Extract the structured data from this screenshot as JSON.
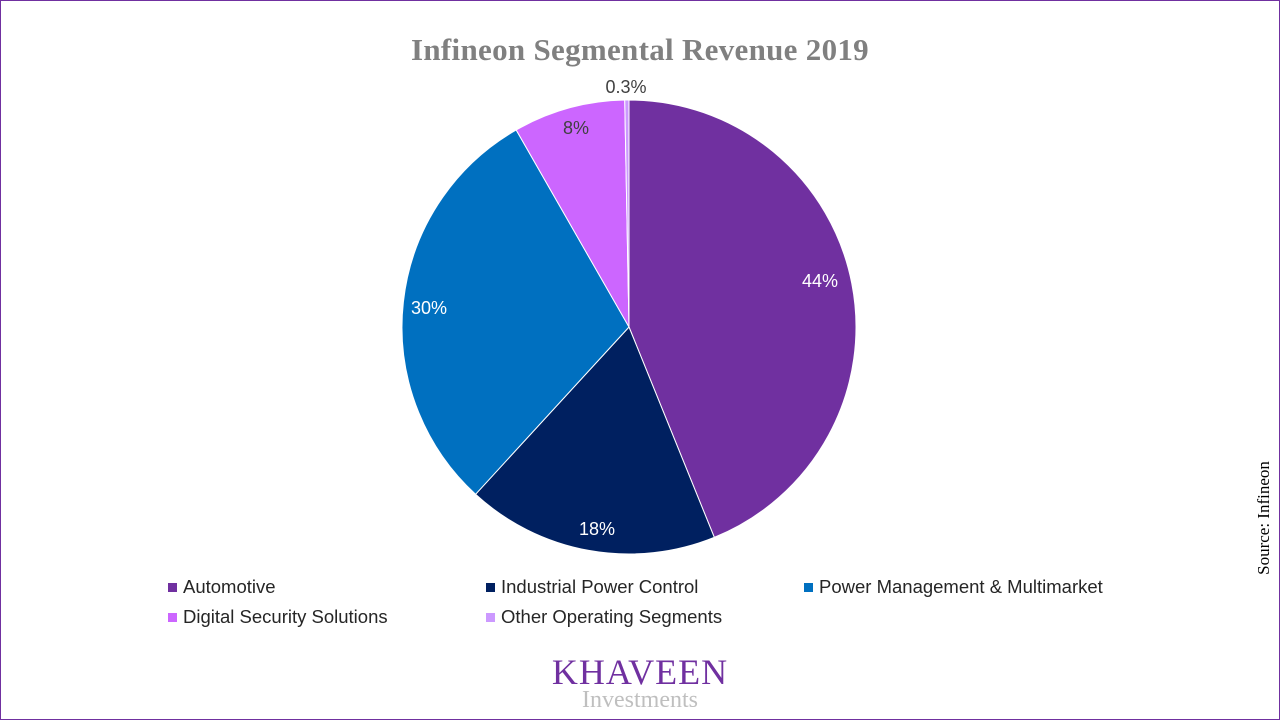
{
  "chart_data": {
    "type": "pie",
    "title": "Infineon Segmental Revenue 2019",
    "slices": [
      {
        "name": "Automotive",
        "value": 44,
        "label": "44%",
        "color": "#7030a0",
        "label_color": "#ffffff"
      },
      {
        "name": "Industrial Power Control",
        "value": 18,
        "label": "18%",
        "color": "#002060",
        "label_color": "#ffffff"
      },
      {
        "name": "Power Management & Multimarket",
        "value": 30,
        "label": "30%",
        "color": "#0070c0",
        "label_color": "#ffffff"
      },
      {
        "name": "Digital Security Solutions",
        "value": 8,
        "label": "8%",
        "color": "#cc66ff",
        "label_color": "#404040"
      },
      {
        "name": "Other Operating Segments",
        "value": 0.3,
        "label": "0.3%",
        "color": "#cc99ff",
        "label_color": "#404040"
      }
    ],
    "start_angle": "12 o'clock",
    "direction": "clockwise",
    "legend_position": "bottom"
  },
  "source": "Source:  Infineon",
  "logo": {
    "main": "KHAVEEN",
    "sub": "Investments"
  },
  "colors": {
    "accent": "#7030a0",
    "title": "#808080"
  }
}
